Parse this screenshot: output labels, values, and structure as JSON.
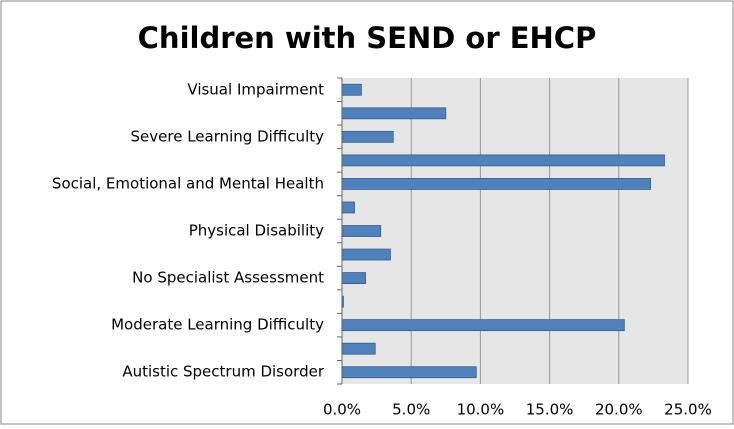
{
  "chart_data": {
    "type": "bar",
    "orientation": "horizontal",
    "title": "Children with SEND or EHCP",
    "categories": [
      "Visual Impairment",
      null,
      "Severe Learning Difficulty",
      null,
      "Social, Emotional and Mental Health",
      null,
      "Physical Disability",
      null,
      "No Specialist Assessment",
      null,
      "Moderate Learning Difficulty",
      null,
      "Autistic Spectrum Disorder"
    ],
    "values": [
      1.4,
      7.5,
      3.7,
      23.3,
      22.3,
      0.9,
      2.8,
      3.5,
      1.7,
      0.1,
      20.4,
      2.4,
      9.7
    ],
    "color": "#4f81bd",
    "xlim": [
      0,
      25
    ],
    "xticks": [
      {
        "value": 0,
        "label": "0.0%"
      },
      {
        "value": 5,
        "label": "5.0%"
      },
      {
        "value": 10,
        "label": "10.0%"
      },
      {
        "value": 15,
        "label": "15.0%"
      },
      {
        "value": 20,
        "label": "20.0%"
      },
      {
        "value": 25,
        "label": "25.0%"
      }
    ],
    "grid": true
  }
}
